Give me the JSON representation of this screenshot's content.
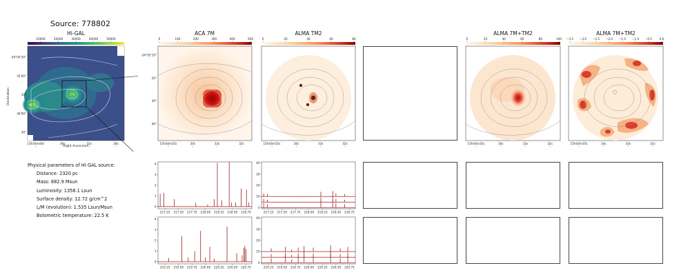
{
  "source_title": "Source: 778802",
  "panels": {
    "higal": {
      "title": "Hi-GAL",
      "colorbar_ticks": [
        "10000",
        "20000",
        "30000",
        "40000",
        "50000"
      ],
      "y_ticks": [
        "-54°04'30\"",
        "35'00\"",
        "30\"",
        "36'00\"",
        "30\""
      ],
      "x_ticks": [
        "15h44m40s",
        "36s",
        "32s",
        "28s"
      ],
      "xlabel": "Right Ascension",
      "ylabel": "Declination"
    },
    "aca": {
      "title": "ACA 7M",
      "colorbar_ticks": [
        "0",
        "100",
        "200",
        "300",
        "400",
        "500"
      ],
      "y_ticks": [
        "-54°05'10\"",
        "20\"",
        "30\"",
        "40\""
      ],
      "x_ticks": [
        "15h44m35s",
        "34s",
        "33s",
        "32s"
      ]
    },
    "tm2": {
      "title": "ALMA TM2",
      "colorbar_ticks": [
        "0",
        "20",
        "40",
        "60",
        "80"
      ],
      "x_ticks": [
        "15h44m35s",
        "34s",
        "33s",
        "32s"
      ]
    },
    "combo": {
      "title": "ALMA 7M+TM2",
      "colorbar_ticks": [
        "0",
        "20",
        "40",
        "60",
        "80",
        "100"
      ],
      "x_ticks": [
        "15h44m35s",
        "34s",
        "33s",
        "32s"
      ]
    },
    "combo_log": {
      "title": "ALMA 7M+TM2",
      "colorbar_ticks": [
        "−3.5",
        "−3.0",
        "−2.5",
        "−2.0",
        "−1.5",
        "−1.0",
        "−0.5",
        "0.0"
      ],
      "x_ticks": [
        "15h44m35s",
        "34s",
        "33s",
        "32s"
      ]
    }
  },
  "params": {
    "header": "Physical parameters of Hi-GAL source:",
    "items": [
      "Distance: 2320 pc",
      "Mass: 882.9 Msun",
      "Luminosity: 1356.1 Lsun",
      "Surface density: 12.72 g/cm^2",
      "L/M (evolution): 1.535 Lsun/Msun",
      "Bolometric temperature: 22.5 K"
    ]
  },
  "colors": {
    "spectrum_line": "#8b0000",
    "baseline": "#d62728",
    "contour": "#999999",
    "hot_core": "#b10c0c"
  },
  "chart_data": [
    {
      "type": "line",
      "name": "aca-spectrum-spw1",
      "xlim": [
        217.12,
        218.86
      ],
      "ylim": [
        -0.2,
        4.2
      ],
      "x_ticks": [
        217.25,
        217.5,
        217.75,
        218.0,
        218.25,
        218.5,
        218.75
      ],
      "x_tick_labels": [
        "217.25",
        "217.50",
        "217.75",
        "218.00",
        "218.25",
        "218.50",
        "218.75"
      ],
      "y_ticks": [
        0,
        1,
        2,
        3,
        4
      ],
      "y_tick_labels": [
        "0",
        "1",
        "2",
        "3",
        "4"
      ],
      "baselines": [
        0
      ],
      "peaks": [
        {
          "x": 217.16,
          "y": 1.2
        },
        {
          "x": 217.23,
          "y": 1.3
        },
        {
          "x": 217.42,
          "y": 0.7
        },
        {
          "x": 217.82,
          "y": 0.35
        },
        {
          "x": 218.04,
          "y": 0.2
        },
        {
          "x": 218.16,
          "y": 0.7
        },
        {
          "x": 218.22,
          "y": 4.1
        },
        {
          "x": 218.3,
          "y": 0.6
        },
        {
          "x": 218.44,
          "y": 4.2
        },
        {
          "x": 218.48,
          "y": 0.4
        },
        {
          "x": 218.56,
          "y": 0.4
        },
        {
          "x": 218.66,
          "y": 1.7
        },
        {
          "x": 218.76,
          "y": 1.6
        },
        {
          "x": 218.8,
          "y": 0.4
        }
      ]
    },
    {
      "type": "line",
      "name": "tm2-spectrum-spw1",
      "xlim": [
        217.12,
        218.86
      ],
      "ylim": [
        -1,
        41
      ],
      "x_ticks": [
        217.25,
        217.5,
        217.75,
        218.0,
        218.25,
        218.5,
        218.75
      ],
      "x_tick_labels": [
        "217.25",
        "217.50",
        "217.75",
        "218.00",
        "218.25",
        "218.50",
        "218.75"
      ],
      "y_ticks": [
        0,
        10,
        20,
        30,
        40
      ],
      "y_tick_labels": [
        "0",
        "10",
        "20",
        "30",
        "40"
      ],
      "baselines": [
        0,
        5,
        10
      ],
      "peaks": [
        {
          "x": 217.16,
          "y": 4
        },
        {
          "x": 217.23,
          "y": 3
        },
        {
          "x": 218.22,
          "y": 6
        },
        {
          "x": 218.44,
          "y": 7
        },
        {
          "x": 218.5,
          "y": 4
        },
        {
          "x": 218.66,
          "y": 3
        }
      ]
    },
    {
      "type": "line",
      "name": "aca-spectrum-spw2",
      "xlim": [
        219.12,
        220.86
      ],
      "ylim": [
        -0.2,
        4.2
      ],
      "x_ticks": [
        219.25,
        219.5,
        219.75,
        220.0,
        220.25,
        220.5,
        220.75
      ],
      "x_tick_labels": [
        "219.25",
        "219.50",
        "219.75",
        "220.00",
        "220.25",
        "220.50",
        "220.75"
      ],
      "y_ticks": [
        0,
        1,
        2,
        3,
        4
      ],
      "y_tick_labels": [
        "0",
        "1",
        "2",
        "3",
        "4"
      ],
      "baselines": [
        0
      ],
      "peaks": [
        {
          "x": 219.32,
          "y": 0.35
        },
        {
          "x": 219.56,
          "y": 2.4
        },
        {
          "x": 219.68,
          "y": 0.4
        },
        {
          "x": 219.8,
          "y": 1.0
        },
        {
          "x": 219.91,
          "y": 2.9
        },
        {
          "x": 220.0,
          "y": 0.4
        },
        {
          "x": 220.08,
          "y": 1.4
        },
        {
          "x": 220.16,
          "y": 0.3
        },
        {
          "x": 220.4,
          "y": 3.3
        },
        {
          "x": 220.58,
          "y": 0.8
        },
        {
          "x": 220.68,
          "y": 0.6
        },
        {
          "x": 220.71,
          "y": 1.3
        },
        {
          "x": 220.73,
          "y": 1.5
        },
        {
          "x": 220.75,
          "y": 1.2
        }
      ]
    },
    {
      "type": "line",
      "name": "tm2-spectrum-spw2",
      "xlim": [
        219.12,
        220.86
      ],
      "ylim": [
        -1,
        41
      ],
      "x_ticks": [
        219.25,
        219.5,
        219.75,
        220.0,
        220.25,
        220.5,
        220.75
      ],
      "x_tick_labels": [
        "219.25",
        "219.50",
        "219.75",
        "220.00",
        "220.25",
        "220.50",
        "220.75"
      ],
      "y_ticks": [
        0,
        10,
        20,
        30,
        40
      ],
      "y_tick_labels": [
        "0",
        "10",
        "20",
        "30",
        "40"
      ],
      "baselines": [
        0,
        5,
        10
      ],
      "peaks": [
        {
          "x": 219.3,
          "y": 4
        },
        {
          "x": 219.56,
          "y": 6
        },
        {
          "x": 219.68,
          "y": 3
        },
        {
          "x": 219.8,
          "y": 5
        },
        {
          "x": 219.91,
          "y": 7
        },
        {
          "x": 220.08,
          "y": 5
        },
        {
          "x": 220.4,
          "y": 8
        },
        {
          "x": 220.58,
          "y": 4
        },
        {
          "x": 220.72,
          "y": 6
        }
      ]
    }
  ]
}
